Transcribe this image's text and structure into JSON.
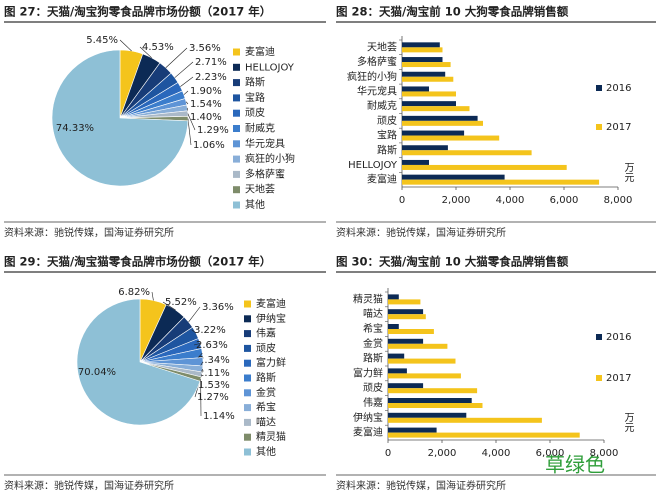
{
  "chart_data": [
    {
      "type": "pie",
      "title": "图 27：天猫/淘宝狗零食品牌市场份额（2017 年）",
      "categories": [
        "麦富迪",
        "HELLOJOY",
        "路斯",
        "宝路",
        "顽皮",
        "耐威克",
        "华元宠具",
        "疯狂的小狗",
        "多格萨蜜",
        "天地荟",
        "其他"
      ],
      "values": [
        5.45,
        4.53,
        3.56,
        2.71,
        2.23,
        1.9,
        1.54,
        1.4,
        1.29,
        1.06,
        74.33
      ],
      "value_labels": [
        "5.45%",
        "4.53%",
        "3.56%",
        "2.71%",
        "2.23%",
        "1.90%",
        "1.54%",
        "1.40%",
        "1.29%",
        "1.06%",
        "74.33%"
      ],
      "colors": [
        "#f4c41c",
        "#0c2a55",
        "#173c78",
        "#1e55a0",
        "#2a68bc",
        "#3b7dcc",
        "#5e94d6",
        "#88aed8",
        "#aab9c8",
        "#7e8c6a",
        "#8ec0d6"
      ],
      "source": "资料来源：驰锐传媒，国海证券研究所"
    },
    {
      "type": "bar",
      "orientation": "horizontal",
      "title": "图 28：天猫/淘宝前 10 大狗零食品牌销售额",
      "categories": [
        "天地荟",
        "多格萨蜜",
        "疯狂的小狗",
        "华元宠具",
        "耐威克",
        "顽皮",
        "宝路",
        "路斯",
        "HELLOJOY",
        "麦富迪"
      ],
      "series": [
        {
          "name": "2016",
          "color": "#0c2a55",
          "values": [
            1400,
            1500,
            1600,
            1000,
            2000,
            2800,
            2300,
            1700,
            1000,
            3800
          ]
        },
        {
          "name": "2017",
          "color": "#f4c41c",
          "values": [
            1500,
            1800,
            1900,
            2000,
            2500,
            3000,
            3600,
            4800,
            6100,
            7300
          ]
        }
      ],
      "xlim": [
        0,
        8000
      ],
      "xticks": [
        0,
        {
          "value": 2000,
          "label": "2,000"
        },
        {
          "value": 4000,
          "label": "4,000"
        },
        {
          "value": 6000,
          "label": "6,000"
        },
        {
          "value": 8000,
          "label": "8,000"
        }
      ],
      "unit": "万元",
      "source": "资料来源：驰锐传媒，国海证券研究所"
    },
    {
      "type": "pie",
      "title": "图 29：天猫/淘宝猫零食品牌市场份额（2017 年）",
      "categories": [
        "麦富迪",
        "伊纳宝",
        "伟嘉",
        "顽皮",
        "富力鲜",
        "路斯",
        "金赏",
        "希宝",
        "喵达",
        "精灵猫",
        "其他"
      ],
      "values": [
        6.82,
        5.52,
        3.36,
        3.22,
        2.63,
        2.34,
        2.11,
        1.53,
        1.27,
        1.14,
        70.04
      ],
      "value_labels": [
        "6.82%",
        "5.52%",
        "3.36%",
        "3.22%",
        "2.63%",
        "2.34%",
        "2.11%",
        "1.53%",
        "1.27%",
        "1.14%",
        "70.04%"
      ],
      "colors": [
        "#f4c41c",
        "#0c2a55",
        "#173c78",
        "#1e55a0",
        "#2a68bc",
        "#3b7dcc",
        "#5e94d6",
        "#88aed8",
        "#aab9c8",
        "#7e8c6a",
        "#8ec0d6"
      ],
      "source": "资料来源：驰锐传媒，国海证券研究所"
    },
    {
      "type": "bar",
      "orientation": "horizontal",
      "title": "图 30：天猫/淘宝前 10 大猫零食品牌销售额",
      "categories": [
        "精灵猫",
        "喵达",
        "希宝",
        "金赏",
        "路斯",
        "富力鲜",
        "顽皮",
        "伟嘉",
        "伊纳宝",
        "麦富迪"
      ],
      "series": [
        {
          "name": "2016",
          "color": "#0c2a55",
          "values": [
            400,
            1300,
            400,
            1300,
            600,
            700,
            1300,
            3100,
            2900,
            1800
          ]
        },
        {
          "name": "2017",
          "color": "#f4c41c",
          "values": [
            1200,
            1400,
            1700,
            2200,
            2500,
            2700,
            3300,
            3500,
            5700,
            7100
          ]
        }
      ],
      "xlim": [
        0,
        8000
      ],
      "xticks": [
        0,
        {
          "value": 2000,
          "label": "2,000"
        },
        {
          "value": 4000,
          "label": "4,000"
        },
        {
          "value": 6000,
          "label": "6,000"
        },
        {
          "value": 8000,
          "label": "8,000"
        }
      ],
      "unit": "万元",
      "source": "资料来源：驰锐传媒，国海证券研究所"
    }
  ],
  "watermark": "草绿色"
}
